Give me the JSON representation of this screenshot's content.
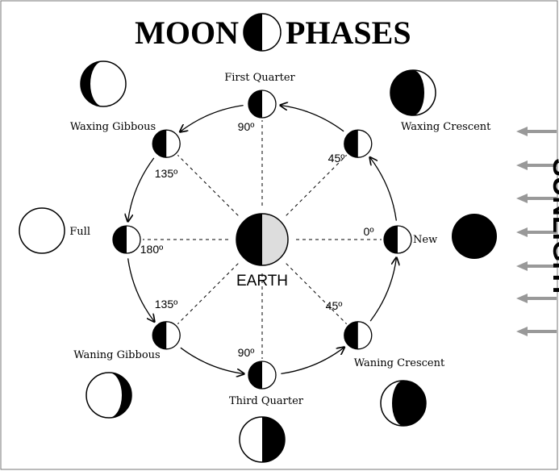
{
  "title": {
    "left": "MOON",
    "right": "PHASES"
  },
  "phases": [
    {
      "name": "New",
      "angle": "0º"
    },
    {
      "name": "Waxing Crescent",
      "angle": "45º"
    },
    {
      "name": "First Quarter",
      "angle": "90º"
    },
    {
      "name": "Waxing Gibbous",
      "angle": "135º"
    },
    {
      "name": "Full",
      "angle": "180º"
    },
    {
      "name": "Waning Gibbous",
      "angle": "135º"
    },
    {
      "name": "Third Quarter",
      "angle": "90º"
    },
    {
      "name": "Waning Crescent",
      "angle": "45º"
    }
  ],
  "earth": "EARTH",
  "sunlight": "SUNLIGHT"
}
